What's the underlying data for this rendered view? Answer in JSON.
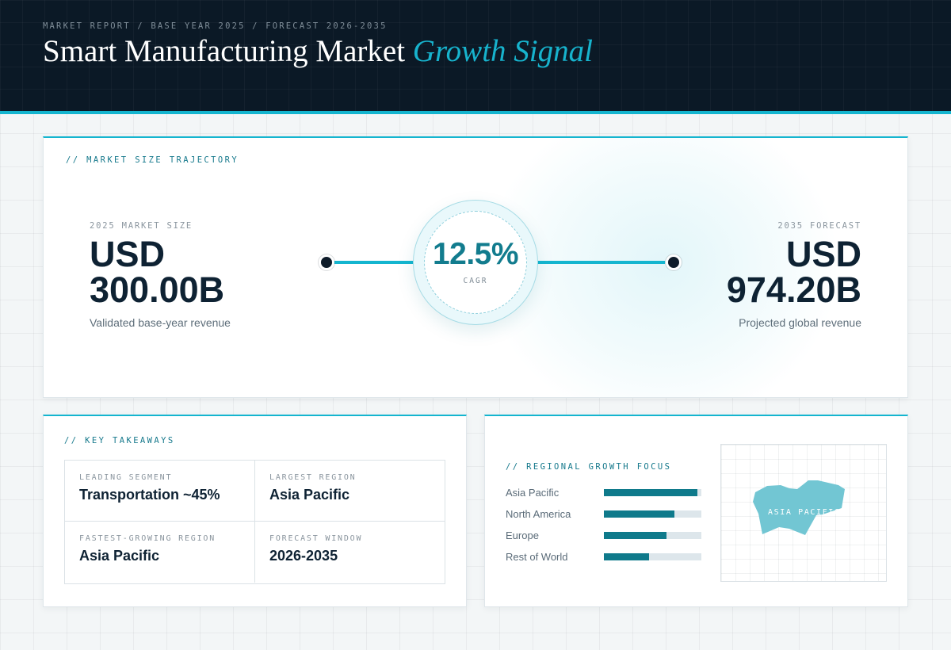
{
  "header": {
    "breadcrumb": "MARKET REPORT / BASE YEAR 2025 / FORECAST 2026-2035",
    "title_main": "Smart Manufacturing Market",
    "title_accent": "Growth Signal"
  },
  "trajectory": {
    "label": "// MARKET SIZE TRAJECTORY",
    "start": {
      "caption": "2025 MARKET SIZE",
      "currency": "USD",
      "value": "300.00B",
      "subtitle": "Validated base-year revenue"
    },
    "cagr": {
      "value": "12.5%",
      "caption": "CAGR"
    },
    "end": {
      "caption": "2035 FORECAST",
      "currency": "USD",
      "value": "974.20B",
      "subtitle": "Projected global revenue"
    }
  },
  "takeaways": {
    "label": "// KEY TAKEAWAYS",
    "cells": [
      {
        "label": "LEADING SEGMENT",
        "value": "Transportation ~45%"
      },
      {
        "label": "LARGEST REGION",
        "value": "Asia Pacific"
      },
      {
        "label": "FASTEST-GROWING REGION",
        "value": "Asia Pacific"
      },
      {
        "label": "FORECAST WINDOW",
        "value": "2026-2035"
      }
    ]
  },
  "regional": {
    "label": "// REGIONAL GROWTH FOCUS",
    "regions": [
      {
        "name": "Asia Pacific",
        "share": 0.96
      },
      {
        "name": "North America",
        "share": 0.72
      },
      {
        "name": "Europe",
        "share": 0.64
      },
      {
        "name": "Rest of World",
        "share": 0.46
      }
    ],
    "map_label": "ASIA PACIFIC"
  },
  "colors": {
    "accent": "#14b5cf",
    "accent_dark": "#0f7a8b",
    "header_bg": "#0b1926",
    "map_shape": "#72c6d3"
  }
}
